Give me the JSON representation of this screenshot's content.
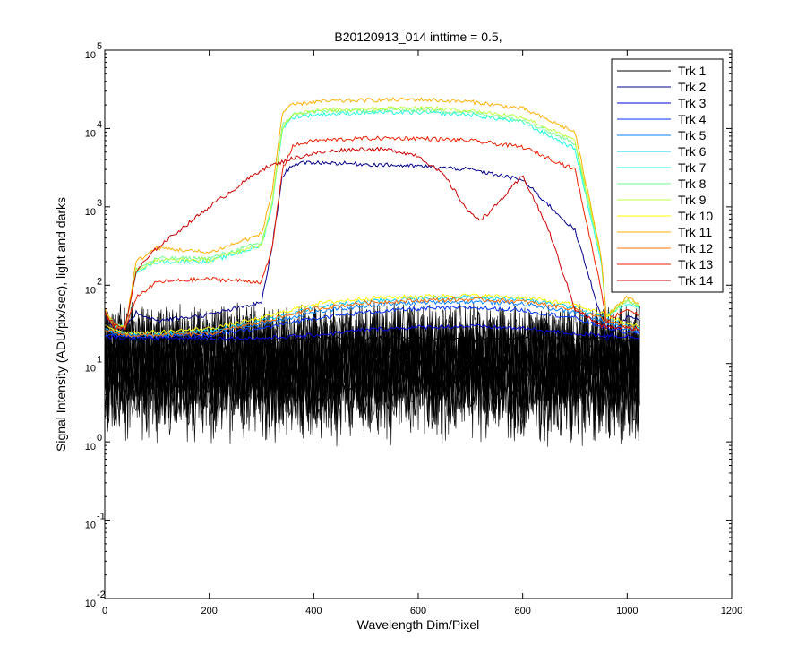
{
  "chart_data": {
    "type": "line",
    "title": "B20120913_014 inttime = 0.5,",
    "xlabel": "Wavelength Dim/Pixel",
    "ylabel": "Signal Intensity (ADU/pix/sec), light and darks",
    "xlim": [
      0,
      1200
    ],
    "ylim": [
      0.01,
      100000
    ],
    "yscale": "log",
    "xticks": [
      "0",
      "200",
      "400",
      "600",
      "800",
      "1000",
      "1200"
    ],
    "yticks": [
      {
        "base": "10",
        "exp": "-2"
      },
      {
        "base": "10",
        "exp": "-1"
      },
      {
        "base": "10",
        "exp": "0"
      },
      {
        "base": "10",
        "exp": "1"
      },
      {
        "base": "10",
        "exp": "2"
      },
      {
        "base": "10",
        "exp": "3"
      },
      {
        "base": "10",
        "exp": "4"
      },
      {
        "base": "10",
        "exp": "5"
      }
    ],
    "grid": false,
    "legend_position": "top-right",
    "series": [
      {
        "name": "Trk 1",
        "color": "#000000",
        "x": [
          0,
          20,
          40,
          100,
          200,
          300,
          330,
          360,
          400,
          500,
          600,
          700,
          800,
          900,
          950,
          1000,
          1025
        ],
        "y": [
          30,
          22,
          20,
          21,
          21,
          20,
          20,
          20,
          21,
          21,
          21,
          20,
          21,
          21,
          21,
          20,
          20
        ]
      },
      {
        "name": "Trk 2",
        "color": "#00008f",
        "x": [
          0,
          20,
          40,
          60,
          100,
          200,
          300,
          320,
          340,
          360,
          400,
          500,
          600,
          700,
          800,
          900,
          950,
          960,
          1000,
          1025
        ],
        "y": [
          40,
          28,
          28,
          45,
          35,
          42,
          60,
          300,
          2500,
          3500,
          3700,
          3500,
          3300,
          3000,
          2200,
          500,
          40,
          20,
          40,
          35
        ]
      },
      {
        "name": "Trk 3",
        "color": "#0000df",
        "x": [
          0,
          40,
          100,
          200,
          300,
          400,
          500,
          600,
          700,
          800,
          900,
          1000,
          1025
        ],
        "y": [
          22,
          21,
          21,
          21,
          21,
          23,
          27,
          29,
          30,
          28,
          24,
          22,
          21
        ]
      },
      {
        "name": "Trk 4",
        "color": "#0030ff",
        "x": [
          0,
          40,
          100,
          200,
          300,
          400,
          500,
          600,
          700,
          800,
          900,
          950,
          1000,
          1025
        ],
        "y": [
          24,
          22,
          22,
          23,
          28,
          38,
          45,
          50,
          52,
          48,
          38,
          30,
          25,
          24
        ]
      },
      {
        "name": "Trk 5",
        "color": "#0080ff",
        "x": [
          0,
          40,
          100,
          200,
          300,
          400,
          500,
          600,
          700,
          800,
          900,
          950,
          1000,
          1025
        ],
        "y": [
          26,
          23,
          23,
          25,
          32,
          45,
          55,
          60,
          62,
          58,
          45,
          35,
          28,
          26
        ]
      },
      {
        "name": "Trk 6",
        "color": "#00c8ff",
        "x": [
          0,
          40,
          100,
          200,
          300,
          400,
          500,
          600,
          700,
          800,
          900,
          950,
          1000,
          1025
        ],
        "y": [
          28,
          24,
          24,
          26,
          35,
          52,
          62,
          68,
          70,
          66,
          52,
          40,
          30,
          28
        ]
      },
      {
        "name": "Trk 7",
        "color": "#20ffdf",
        "x": [
          0,
          20,
          40,
          60,
          100,
          200,
          300,
          320,
          340,
          360,
          400,
          500,
          600,
          700,
          800,
          900,
          950,
          960,
          1000,
          1025
        ],
        "y": [
          45,
          30,
          30,
          150,
          200,
          200,
          320,
          1000,
          10000,
          14000,
          15000,
          16000,
          16000,
          15000,
          12000,
          5500,
          200,
          40,
          60,
          50
        ]
      },
      {
        "name": "Trk 8",
        "color": "#70ff8f",
        "x": [
          0,
          20,
          40,
          60,
          100,
          200,
          300,
          320,
          340,
          360,
          400,
          500,
          600,
          700,
          800,
          900,
          950,
          960,
          1000,
          1025
        ],
        "y": [
          48,
          30,
          30,
          160,
          220,
          220,
          350,
          1100,
          11000,
          15000,
          16500,
          17000,
          17500,
          16000,
          13000,
          6500,
          220,
          40,
          65,
          52
        ]
      },
      {
        "name": "Trk 9",
        "color": "#bfff40",
        "x": [
          0,
          20,
          40,
          60,
          100,
          200,
          300,
          320,
          340,
          360,
          400,
          500,
          600,
          700,
          800,
          900,
          950,
          960,
          1000,
          1025
        ],
        "y": [
          46,
          30,
          30,
          155,
          210,
          210,
          330,
          1050,
          10500,
          15500,
          17000,
          18000,
          18500,
          17000,
          14000,
          7000,
          230,
          40,
          66,
          52
        ]
      },
      {
        "name": "Trk 10",
        "color": "#ffff00",
        "x": [
          0,
          40,
          100,
          200,
          300,
          400,
          500,
          600,
          700,
          800,
          900,
          950,
          1000,
          1025
        ],
        "y": [
          30,
          25,
          25,
          28,
          38,
          58,
          68,
          72,
          74,
          70,
          56,
          44,
          32,
          30
        ]
      },
      {
        "name": "Trk 11",
        "color": "#ffaf00",
        "x": [
          0,
          20,
          40,
          60,
          100,
          200,
          300,
          320,
          340,
          360,
          400,
          500,
          600,
          700,
          800,
          900,
          950,
          960,
          1000,
          1025
        ],
        "y": [
          50,
          30,
          30,
          200,
          300,
          260,
          450,
          1500,
          16000,
          20000,
          22000,
          23000,
          23500,
          22000,
          18000,
          9000,
          250,
          40,
          70,
          55
        ]
      },
      {
        "name": "Trk 12",
        "color": "#ff7000",
        "x": [
          0,
          40,
          100,
          200,
          300,
          400,
          500,
          600,
          700,
          800,
          900,
          950,
          1000,
          1025
        ],
        "y": [
          27,
          23,
          23,
          24,
          34,
          50,
          60,
          64,
          66,
          62,
          50,
          38,
          29,
          27
        ]
      },
      {
        "name": "Trk 13",
        "color": "#ef2000",
        "x": [
          0,
          20,
          40,
          60,
          100,
          200,
          300,
          320,
          340,
          360,
          400,
          500,
          600,
          700,
          800,
          900,
          950,
          960,
          1000,
          1025
        ],
        "y": [
          42,
          28,
          28,
          70,
          110,
          120,
          110,
          280,
          3000,
          6000,
          7000,
          7500,
          7500,
          7000,
          5800,
          3000,
          90,
          35,
          50,
          40
        ]
      },
      {
        "name": "Trk 14",
        "color": "#d00000",
        "x": [
          0,
          20,
          40,
          60,
          100,
          200,
          300,
          350,
          400,
          450,
          500,
          550,
          600,
          650,
          700,
          720,
          740,
          800,
          850,
          900,
          950,
          1000,
          1025
        ],
        "y": [
          45,
          30,
          30,
          150,
          300,
          1000,
          3000,
          4000,
          4800,
          5300,
          5500,
          5300,
          4500,
          2500,
          800,
          700,
          900,
          2500,
          500,
          50,
          30,
          28,
          28
        ]
      }
    ]
  }
}
